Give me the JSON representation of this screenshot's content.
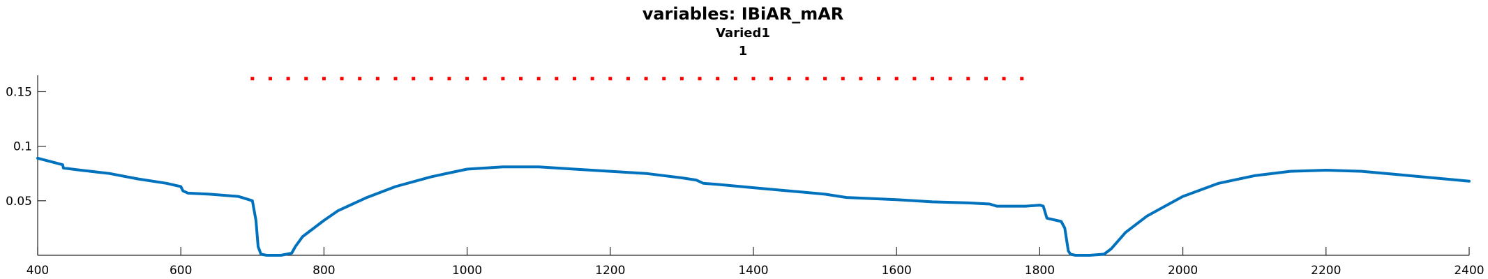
{
  "chart_data": {
    "type": "line",
    "title": "variables: IBiAR_mAR",
    "subtitle_lines": [
      "Varied1",
      "1"
    ],
    "xlim": [
      400,
      2400
    ],
    "ylim": [
      0,
      0.165
    ],
    "xticks": [
      400,
      600,
      800,
      1000,
      1200,
      1400,
      1600,
      1800,
      2000,
      2200,
      2400
    ],
    "xtick_labels": [
      "400",
      "600",
      "800",
      "1000",
      "1200",
      "1400",
      "1600",
      "1800",
      "2000",
      "2200",
      "2400"
    ],
    "yticks": [
      0.05,
      0.1,
      0.15
    ],
    "ytick_labels": [
      "0.05",
      "0.1",
      "0.15"
    ],
    "grid": false,
    "series": [
      {
        "color": "#0072BD",
        "style": "solid",
        "x": [
          400,
          435,
          436,
          460,
          500,
          540,
          580,
          600,
          603,
          610,
          640,
          680,
          685,
          700,
          705,
          708,
          712,
          720,
          740,
          755,
          760,
          770,
          800,
          820,
          860,
          900,
          950,
          1000,
          1050,
          1100,
          1150,
          1200,
          1250,
          1300,
          1320,
          1330,
          1350,
          1400,
          1450,
          1500,
          1530,
          1600,
          1650,
          1700,
          1730,
          1740,
          1780,
          1800,
          1805,
          1810,
          1830,
          1835,
          1840,
          1843,
          1850,
          1870,
          1890,
          1900,
          1920,
          1950,
          2000,
          2050,
          2100,
          2150,
          2200,
          2250,
          2300,
          2350,
          2400
        ],
        "y": [
          0.089,
          0.083,
          0.08,
          0.078,
          0.075,
          0.07,
          0.066,
          0.063,
          0.059,
          0.057,
          0.056,
          0.054,
          0.053,
          0.05,
          0.032,
          0.008,
          0.001,
          0.0,
          0.0,
          0.002,
          0.008,
          0.017,
          0.032,
          0.041,
          0.053,
          0.063,
          0.072,
          0.079,
          0.081,
          0.081,
          0.079,
          0.077,
          0.075,
          0.071,
          0.069,
          0.066,
          0.065,
          0.062,
          0.059,
          0.056,
          0.053,
          0.051,
          0.049,
          0.048,
          0.047,
          0.045,
          0.045,
          0.046,
          0.045,
          0.034,
          0.031,
          0.025,
          0.004,
          0.001,
          0.0,
          0.0,
          0.001,
          0.006,
          0.021,
          0.036,
          0.054,
          0.066,
          0.073,
          0.077,
          0.078,
          0.077,
          0.074,
          0.071,
          0.068
        ]
      },
      {
        "color": "#FF0000",
        "style": "dotted",
        "x": [
          700,
          725,
          750,
          775,
          800,
          825,
          850,
          875,
          900,
          925,
          950,
          975,
          1000,
          1025,
          1050,
          1075,
          1100,
          1125,
          1150,
          1175,
          1200,
          1225,
          1250,
          1275,
          1300,
          1325,
          1350,
          1375,
          1400,
          1425,
          1450,
          1475,
          1500,
          1525,
          1550,
          1575,
          1600,
          1625,
          1650,
          1675,
          1700,
          1725,
          1750,
          1775
        ],
        "y": [
          0.162,
          0.162,
          0.162,
          0.162,
          0.162,
          0.162,
          0.162,
          0.162,
          0.162,
          0.162,
          0.162,
          0.162,
          0.162,
          0.162,
          0.162,
          0.162,
          0.162,
          0.162,
          0.162,
          0.162,
          0.162,
          0.162,
          0.162,
          0.162,
          0.162,
          0.162,
          0.162,
          0.162,
          0.162,
          0.162,
          0.162,
          0.162,
          0.162,
          0.162,
          0.162,
          0.162,
          0.162,
          0.162,
          0.162,
          0.162,
          0.162,
          0.162,
          0.162,
          0.162
        ]
      }
    ]
  }
}
